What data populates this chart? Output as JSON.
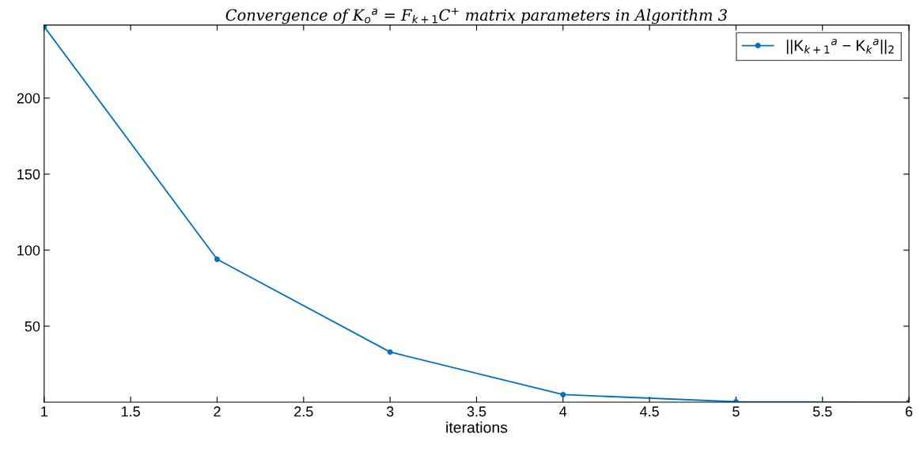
{
  "chart_data": {
    "type": "line",
    "title": "Convergence of K$_{o}$$^{a}$ = F$_{k+1}$C$^{+}$ matrix parameters in Algorithm 3",
    "xlabel": "iterations",
    "x": [
      1,
      2,
      3,
      4,
      5,
      6
    ],
    "series": [
      {
        "name": "||K$_{k+1}$$^{a}$ − K$_{k}$$^{a}$||$_{2}$",
        "color": "#0072bd",
        "values": [
          247,
          94,
          33,
          5,
          0.3,
          0
        ]
      }
    ],
    "xlim": [
      1,
      6
    ],
    "xticks": [
      1,
      1.5,
      2,
      2.5,
      3,
      3.5,
      4,
      4.5,
      5,
      5.5,
      6
    ],
    "ylim": [
      0,
      248
    ],
    "yticks": [
      50,
      100,
      150,
      200
    ],
    "grid": false,
    "legend": "top right",
    "marker": "circle",
    "line_style": "solid"
  }
}
